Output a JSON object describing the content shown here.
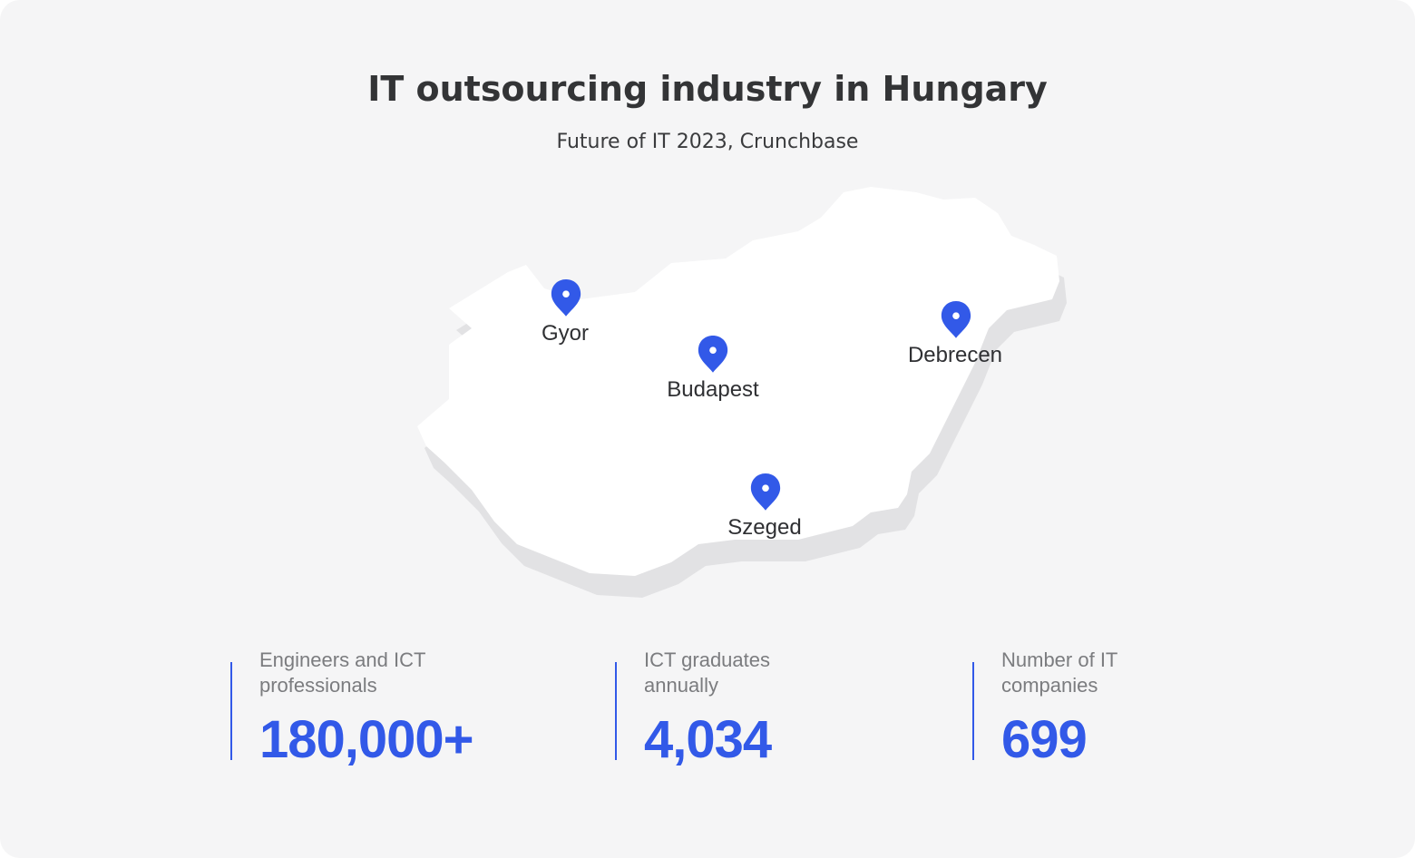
{
  "header": {
    "title": "IT outsourcing industry in Hungary",
    "subtitle": "Future of IT 2023, Crunchbase"
  },
  "map": {
    "pin_color": "#3259e8",
    "land_color": "#ffffff",
    "shadow_color": "#e2e2e4",
    "cities": [
      {
        "name": "Gyor"
      },
      {
        "name": "Budapest"
      },
      {
        "name": "Debrecen"
      },
      {
        "name": "Szeged"
      }
    ]
  },
  "stats": [
    {
      "label": "Engineers and ICT professionals",
      "value": "180,000+"
    },
    {
      "label": "ICT graduates annually",
      "value": "4,034"
    },
    {
      "label": "Number of IT companies",
      "value": "699"
    }
  ],
  "accent_color": "#3259e8"
}
